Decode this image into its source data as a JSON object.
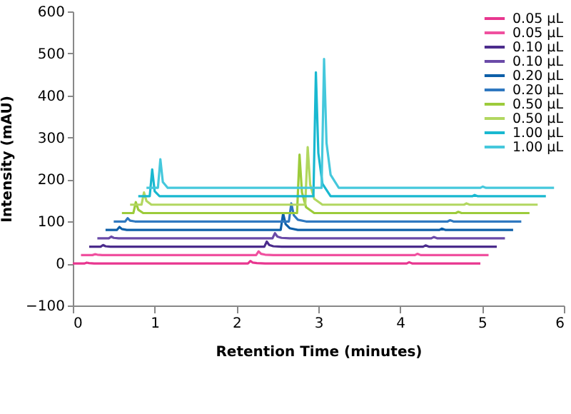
{
  "chart_data": {
    "type": "line",
    "xlabel": "Retention Time (minutes)",
    "ylabel": "Intensity (mAU)",
    "xlim": [
      0,
      6
    ],
    "ylim": [
      -100,
      600
    ],
    "xticks": [
      0,
      1,
      2,
      3,
      4,
      5,
      6
    ],
    "yticks": [
      -100,
      0,
      100,
      200,
      300,
      400,
      500,
      600
    ],
    "legend": "top right",
    "line_style": "solid",
    "series": [
      {
        "name": "0.05 µL",
        "color": "#e8368f",
        "x": [
          0,
          0.14,
          0.17,
          0.2,
          0.26,
          2.14,
          2.17,
          2.2,
          2.25,
          2.35,
          4.08,
          4.11,
          4.15,
          4.98
        ],
        "values": [
          0,
          0,
          2,
          1,
          0,
          0,
          6,
          2,
          1,
          0,
          0,
          3,
          0,
          0
        ]
      },
      {
        "name": "0.05 µL",
        "color": "#f0509f",
        "x": [
          0.1,
          0.24,
          0.27,
          0.3,
          0.36,
          2.24,
          2.27,
          2.3,
          2.35,
          2.45,
          4.18,
          4.21,
          4.25,
          5.08
        ],
        "values": [
          20,
          20,
          22,
          21,
          20,
          20,
          29,
          23,
          21,
          20,
          20,
          23,
          20,
          20
        ]
      },
      {
        "name": "0.10 µL",
        "color": "#4b2c8c",
        "x": [
          0.2,
          0.34,
          0.37,
          0.4,
          0.46,
          2.34,
          2.37,
          2.4,
          2.45,
          2.55,
          4.28,
          4.31,
          4.35,
          5.18
        ],
        "values": [
          40,
          40,
          44,
          41,
          40,
          40,
          52,
          44,
          41,
          40,
          40,
          43,
          40,
          40
        ]
      },
      {
        "name": "0.10 µL",
        "color": "#6a4aa8",
        "x": [
          0.3,
          0.44,
          0.47,
          0.5,
          0.56,
          2.44,
          2.47,
          2.5,
          2.55,
          2.65,
          4.38,
          4.41,
          4.45,
          5.28
        ],
        "values": [
          60,
          60,
          64,
          61,
          60,
          60,
          72,
          64,
          61,
          60,
          60,
          63,
          60,
          60
        ]
      },
      {
        "name": "0.20 µL",
        "color": "#0d5fa8",
        "x": [
          0.4,
          0.54,
          0.57,
          0.6,
          0.66,
          2.54,
          2.57,
          2.6,
          2.65,
          2.75,
          4.48,
          4.51,
          4.55,
          5.38
        ],
        "values": [
          80,
          80,
          87,
          82,
          80,
          80,
          119,
          94,
          84,
          80,
          80,
          83,
          80,
          80
        ]
      },
      {
        "name": "0.20 µL",
        "color": "#2f78c0",
        "x": [
          0.5,
          0.64,
          0.67,
          0.7,
          0.76,
          2.64,
          2.67,
          2.7,
          2.75,
          2.85,
          4.58,
          4.61,
          4.65,
          5.48
        ],
        "values": [
          100,
          100,
          108,
          102,
          100,
          100,
          143,
          115,
          104,
          100,
          100,
          103,
          100,
          100
        ]
      },
      {
        "name": "0.50 µL",
        "color": "#9ccb3b",
        "x": [
          0.6,
          0.74,
          0.77,
          0.8,
          0.86,
          2.74,
          2.77,
          2.8,
          2.85,
          2.95,
          4.68,
          4.71,
          4.75,
          5.58
        ],
        "values": [
          120,
          120,
          146,
          128,
          120,
          120,
          259,
          169,
          134,
          120,
          120,
          123,
          120,
          120
        ]
      },
      {
        "name": "0.50 µL",
        "color": "#b2d760",
        "x": [
          0.7,
          0.84,
          0.87,
          0.9,
          0.96,
          2.84,
          2.87,
          2.9,
          2.95,
          3.05,
          4.78,
          4.81,
          4.85,
          5.68
        ],
        "values": [
          140,
          140,
          169,
          149,
          140,
          140,
          277,
          188,
          154,
          140,
          140,
          143,
          140,
          140
        ]
      },
      {
        "name": "1.00 µL",
        "color": "#19b8d0",
        "x": [
          0.8,
          0.94,
          0.97,
          1,
          1.06,
          2.94,
          2.97,
          3,
          3.05,
          3.15,
          4.88,
          4.91,
          4.95,
          5.78
        ],
        "values": [
          160,
          160,
          224,
          172,
          160,
          160,
          455,
          263,
          190,
          160,
          160,
          163,
          160,
          160
        ]
      },
      {
        "name": "1.00 µL",
        "color": "#45c8dc",
        "x": [
          0.9,
          1.04,
          1.07,
          1.1,
          1.16,
          3.04,
          3.07,
          3.1,
          3.15,
          3.25,
          4.98,
          5.01,
          5.05,
          5.88
        ],
        "values": [
          180,
          180,
          248,
          194,
          180,
          180,
          487,
          287,
          211,
          180,
          180,
          183,
          180,
          180
        ]
      }
    ]
  }
}
